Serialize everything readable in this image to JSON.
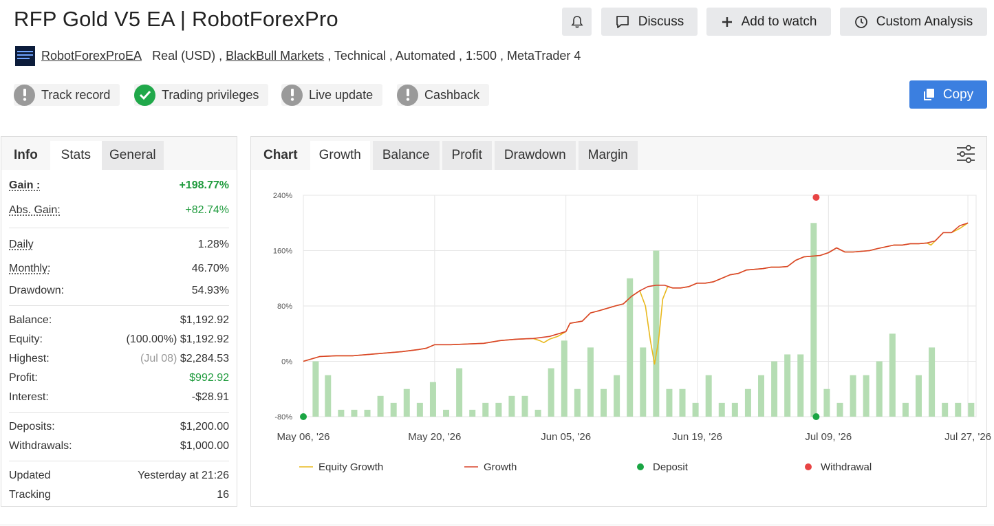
{
  "header": {
    "title": "RFP Gold V5 EA | RobotForexPro",
    "buttons": {
      "discuss": "Discuss",
      "watch": "Add to watch",
      "custom": "Custom Analysis"
    }
  },
  "meta": {
    "owner": "RobotForexProEA",
    "account": "Real (USD) ,",
    "broker": "BlackBull Markets",
    "rest": ", Technical , Automated , 1:500 , MetaTrader 4"
  },
  "badges": {
    "track": "Track record",
    "privileges": "Trading privileges",
    "live": "Live update",
    "cashback": "Cashback"
  },
  "copy_label": "Copy",
  "left_tabs": {
    "info": "Info",
    "stats": "Stats",
    "general": "General"
  },
  "stats": {
    "gain": {
      "label": "Gain :",
      "value": "+198.77%"
    },
    "abs_gain": {
      "label": "Abs. Gain:",
      "value": "+82.74%"
    },
    "daily": {
      "label": "Daily",
      "value": "1.28%"
    },
    "monthly": {
      "label": "Monthly:",
      "value": "46.70%"
    },
    "drawdown": {
      "label": "Drawdown:",
      "value": "54.93%"
    },
    "balance": {
      "label": "Balance:",
      "value": "$1,192.92"
    },
    "equity": {
      "label": "Equity:",
      "value": "(100.00%) $1,192.92"
    },
    "highest": {
      "label": "Highest:",
      "date": "(Jul 08)",
      "value": "$2,284.53"
    },
    "profit": {
      "label": "Profit:",
      "value": "$992.92"
    },
    "interest": {
      "label": "Interest:",
      "value": "-$28.91"
    },
    "deposits": {
      "label": "Deposits:",
      "value": "$1,200.00"
    },
    "withdrawals": {
      "label": "Withdrawals:",
      "value": "$1,000.00"
    },
    "updated": {
      "label": "Updated",
      "value": "Yesterday at 21:26"
    },
    "tracking": {
      "label": "Tracking",
      "value": "16"
    }
  },
  "chart_tabs": {
    "chart": "Chart",
    "growth": "Growth",
    "balance": "Balance",
    "profit": "Profit",
    "drawdown": "Drawdown",
    "margin": "Margin"
  },
  "colors": {
    "growth": "#d9432a",
    "equity": "#e8b81c",
    "bars": "#b5ddb3",
    "deposit": "#1aa543",
    "withdrawal": "#e84444",
    "accent": "#3b7fe0"
  },
  "chart_data": {
    "type": "line",
    "ylim": [
      -80,
      240
    ],
    "yticks": [
      "240%",
      "160%",
      "80%",
      "0%",
      "-80%"
    ],
    "ytick_values": [
      240,
      160,
      80,
      0,
      -80
    ],
    "xticks": [
      "May 06, '26",
      "May 20, '26",
      "Jun 05, '26",
      "Jun 19, '26",
      "Jul 09, '26",
      "Jul 27, '26"
    ],
    "xlim": [
      0,
      82
    ],
    "xtick_positions": [
      0,
      16,
      32,
      48,
      64,
      81
    ],
    "legend": [
      {
        "name": "Equity Growth",
        "kind": "line",
        "color": "#e8b81c"
      },
      {
        "name": "Growth",
        "kind": "line",
        "color": "#d9432a"
      },
      {
        "name": "Deposit",
        "kind": "dot",
        "color": "#1aa543"
      },
      {
        "name": "Withdrawal",
        "kind": "dot",
        "color": "#e84444"
      }
    ],
    "legend_position": "bottom",
    "growth": [
      [
        0,
        0
      ],
      [
        2,
        7
      ],
      [
        4,
        8
      ],
      [
        6,
        8
      ],
      [
        8,
        10
      ],
      [
        10,
        12
      ],
      [
        12,
        14
      ],
      [
        14,
        17
      ],
      [
        15,
        19
      ],
      [
        16,
        24
      ],
      [
        18,
        24
      ],
      [
        20,
        25
      ],
      [
        22,
        26
      ],
      [
        24,
        30
      ],
      [
        26,
        32
      ],
      [
        28,
        33
      ],
      [
        30,
        36
      ],
      [
        32,
        43
      ],
      [
        32.5,
        55
      ],
      [
        34,
        58
      ],
      [
        35,
        70
      ],
      [
        36,
        73
      ],
      [
        38,
        80
      ],
      [
        39,
        83
      ],
      [
        40,
        94
      ],
      [
        41,
        102
      ],
      [
        42,
        108
      ],
      [
        43,
        110
      ],
      [
        44,
        110
      ],
      [
        45,
        106
      ],
      [
        46,
        106
      ],
      [
        47,
        108
      ],
      [
        48,
        113
      ],
      [
        49,
        113
      ],
      [
        50,
        115
      ],
      [
        51,
        120
      ],
      [
        52,
        125
      ],
      [
        53,
        127
      ],
      [
        54,
        132
      ],
      [
        55,
        133
      ],
      [
        56,
        134
      ],
      [
        57,
        136
      ],
      [
        58,
        136
      ],
      [
        59,
        137
      ],
      [
        60,
        146
      ],
      [
        61,
        151
      ],
      [
        62,
        152
      ],
      [
        63,
        153
      ],
      [
        64,
        157
      ],
      [
        65,
        164
      ],
      [
        66,
        158
      ],
      [
        67,
        158
      ],
      [
        68,
        159
      ],
      [
        69,
        160
      ],
      [
        70,
        163
      ],
      [
        72,
        168
      ],
      [
        73,
        168
      ],
      [
        74,
        170
      ],
      [
        75,
        170
      ],
      [
        76,
        171
      ],
      [
        77,
        174
      ],
      [
        78,
        186
      ],
      [
        79,
        186
      ],
      [
        80,
        196
      ],
      [
        81,
        200
      ]
    ],
    "equity": [
      [
        0,
        0
      ],
      [
        2,
        7
      ],
      [
        4,
        8
      ],
      [
        6,
        8
      ],
      [
        8,
        10
      ],
      [
        10,
        12
      ],
      [
        12,
        14
      ],
      [
        14,
        17
      ],
      [
        15,
        19
      ],
      [
        16,
        24
      ],
      [
        18,
        24
      ],
      [
        20,
        25
      ],
      [
        22,
        26
      ],
      [
        24,
        30
      ],
      [
        26,
        32
      ],
      [
        28,
        33
      ],
      [
        28.8,
        30
      ],
      [
        29.3,
        27
      ],
      [
        30,
        32
      ],
      [
        31,
        36
      ],
      [
        32,
        43
      ],
      [
        32.5,
        55
      ],
      [
        34,
        58
      ],
      [
        35,
        70
      ],
      [
        36,
        73
      ],
      [
        38,
        80
      ],
      [
        39,
        83
      ],
      [
        40,
        94
      ],
      [
        41,
        102
      ],
      [
        41.7,
        80
      ],
      [
        42.3,
        30
      ],
      [
        42.8,
        -4
      ],
      [
        43.3,
        30
      ],
      [
        43.8,
        90
      ],
      [
        44.4,
        108
      ],
      [
        45,
        106
      ],
      [
        46,
        106
      ],
      [
        47,
        108
      ],
      [
        48,
        113
      ],
      [
        49,
        113
      ],
      [
        50,
        115
      ],
      [
        51,
        120
      ],
      [
        52,
        125
      ],
      [
        53,
        127
      ],
      [
        54,
        132
      ],
      [
        55,
        133
      ],
      [
        56,
        134
      ],
      [
        57,
        136
      ],
      [
        58,
        136
      ],
      [
        59,
        137
      ],
      [
        60,
        146
      ],
      [
        61,
        151
      ],
      [
        62,
        152
      ],
      [
        63,
        153
      ],
      [
        64,
        157
      ],
      [
        65,
        164
      ],
      [
        66,
        158
      ],
      [
        67,
        158
      ],
      [
        68,
        159
      ],
      [
        69,
        160
      ],
      [
        70,
        163
      ],
      [
        72,
        168
      ],
      [
        73,
        168
      ],
      [
        74,
        170
      ],
      [
        75,
        170
      ],
      [
        76,
        171
      ],
      [
        76.5,
        168
      ],
      [
        77,
        174
      ],
      [
        78,
        186
      ],
      [
        79,
        186
      ],
      [
        80,
        192
      ],
      [
        81,
        200
      ]
    ],
    "bars": [
      [
        1.5,
        0
      ],
      [
        3,
        -20
      ],
      [
        4.6,
        -70
      ],
      [
        6.2,
        -70
      ],
      [
        7.8,
        -70
      ],
      [
        9.4,
        -50
      ],
      [
        11,
        -60
      ],
      [
        12.6,
        -40
      ],
      [
        14.2,
        -60
      ],
      [
        15.8,
        -30
      ],
      [
        17.4,
        -70
      ],
      [
        19,
        -10
      ],
      [
        20.6,
        -70
      ],
      [
        22.2,
        -60
      ],
      [
        23.8,
        -60
      ],
      [
        25.4,
        -50
      ],
      [
        27,
        -50
      ],
      [
        28.6,
        -70
      ],
      [
        30.2,
        -10
      ],
      [
        31.8,
        30
      ],
      [
        33.4,
        -40
      ],
      [
        35,
        20
      ],
      [
        36.6,
        -40
      ],
      [
        38.2,
        -20
      ],
      [
        39.8,
        120
      ],
      [
        41.4,
        20
      ],
      [
        43,
        160
      ],
      [
        44.6,
        -40
      ],
      [
        46.2,
        -40
      ],
      [
        47.8,
        -60
      ],
      [
        49.4,
        -20
      ],
      [
        51,
        -60
      ],
      [
        52.6,
        -60
      ],
      [
        54.2,
        -40
      ],
      [
        55.8,
        -20
      ],
      [
        57.4,
        0
      ],
      [
        59,
        10
      ],
      [
        60.6,
        10
      ],
      [
        62.2,
        200
      ],
      [
        63.8,
        -40
      ],
      [
        65.4,
        -60
      ],
      [
        67,
        -20
      ],
      [
        68.6,
        -20
      ],
      [
        70.2,
        0
      ],
      [
        71.8,
        40
      ],
      [
        73.4,
        -60
      ],
      [
        75,
        -20
      ],
      [
        76.6,
        20
      ],
      [
        78.2,
        -60
      ],
      [
        79.8,
        -60
      ],
      [
        81.4,
        -60
      ]
    ],
    "deposits": [
      [
        0,
        -80
      ],
      [
        62.5,
        -80
      ]
    ],
    "withdrawals": [
      [
        62.5,
        237
      ]
    ]
  }
}
